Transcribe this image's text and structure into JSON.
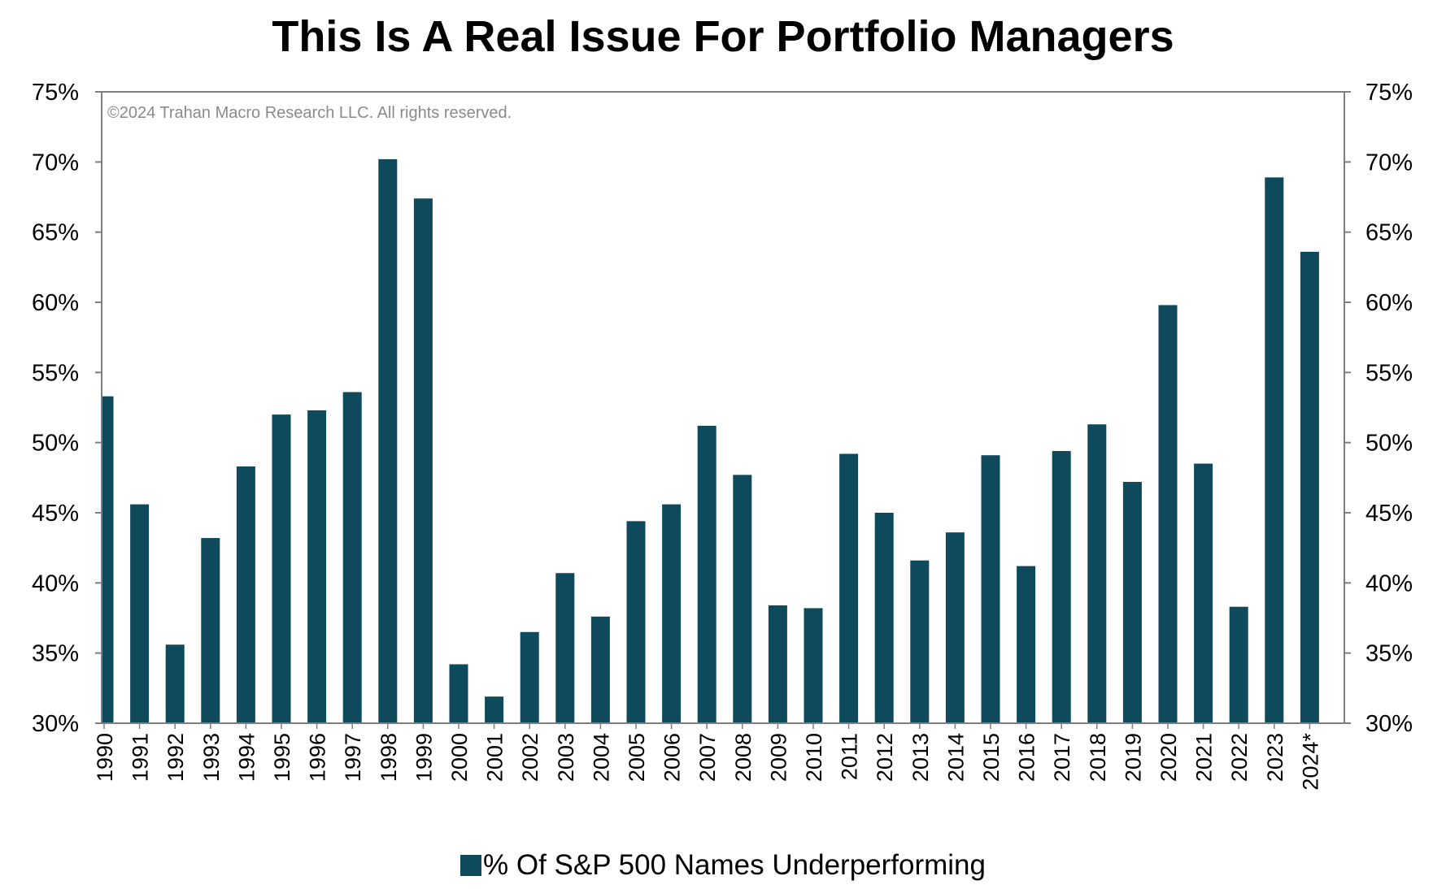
{
  "title": "This Is A Real Issue For Portfolio Managers",
  "watermark": "©2024 Trahan Macro Research LLC. All rights reserved.",
  "legend": {
    "label": "% Of S&P 500 Names Underperforming"
  },
  "colors": {
    "bar": "#0f4a5c",
    "axis": "#7f7f7f"
  },
  "chart_data": {
    "type": "bar",
    "title": "This Is A Real Issue For Portfolio Managers",
    "xlabel": "",
    "ylabel": "",
    "ylim": [
      30,
      75
    ],
    "y_ticks": [
      "75%",
      "70%",
      "65%",
      "60%",
      "55%",
      "50%",
      "45%",
      "40%",
      "35%",
      "30%"
    ],
    "y_tick_values": [
      75,
      70,
      65,
      60,
      55,
      50,
      45,
      40,
      35,
      30
    ],
    "secondary_axis": true,
    "grid": false,
    "legend_position": "bottom",
    "categories": [
      "1990",
      "1991",
      "1992",
      "1993",
      "1994",
      "1995",
      "1996",
      "1997",
      "1998",
      "1999",
      "2000",
      "2001",
      "2002",
      "2003",
      "2004",
      "2005",
      "2006",
      "2007",
      "2008",
      "2009",
      "2010",
      "2011",
      "2012",
      "2013",
      "2014",
      "2015",
      "2016",
      "2017",
      "2018",
      "2019",
      "2020",
      "2021",
      "2022",
      "2023",
      "2024*"
    ],
    "series": [
      {
        "name": "% Of S&P 500 Names Underperforming",
        "values": [
          53.3,
          45.6,
          35.6,
          43.2,
          48.3,
          52.0,
          52.3,
          53.6,
          70.2,
          67.4,
          34.2,
          31.9,
          36.5,
          40.7,
          37.6,
          44.4,
          45.6,
          51.2,
          47.7,
          38.4,
          38.2,
          49.2,
          45.0,
          41.6,
          43.6,
          49.1,
          41.2,
          49.4,
          51.3,
          47.2,
          59.8,
          48.5,
          38.3,
          68.9,
          63.6
        ]
      }
    ]
  }
}
